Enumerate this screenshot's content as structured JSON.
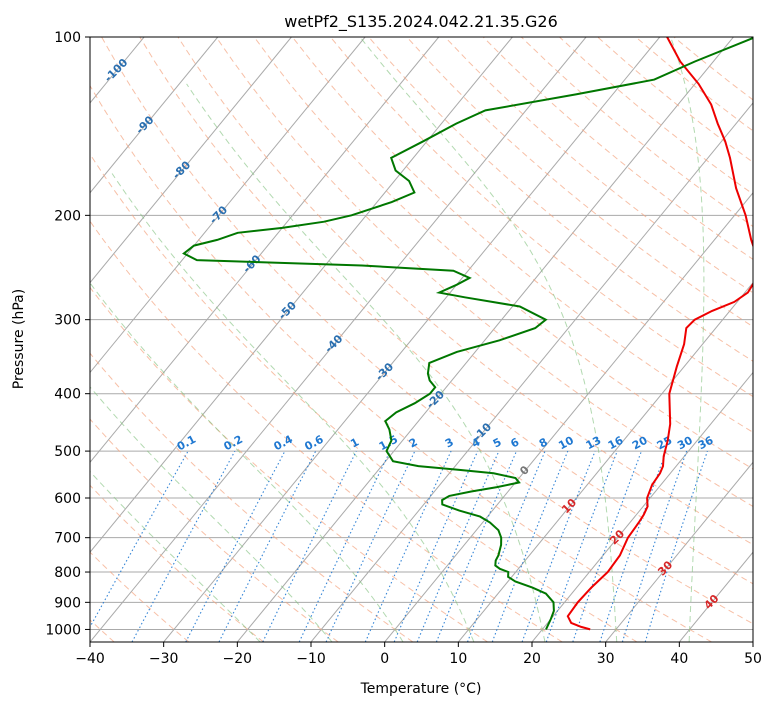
{
  "chart_data": {
    "type": "line",
    "title": "wetPf2_S135.2024.042.21.35.G26",
    "xlabel": "Temperature (°C)",
    "ylabel": "Pressure (hPa)",
    "xlim": [
      -40,
      50
    ],
    "ylim": [
      1050,
      100
    ],
    "y_scale": "log",
    "grid": true,
    "x_ticks": [
      -40,
      -30,
      -20,
      -10,
      0,
      10,
      20,
      30,
      40,
      50
    ],
    "y_ticks": [
      1000,
      900,
      800,
      700,
      600,
      500,
      400,
      300,
      200,
      100
    ],
    "skew": "skew-T log-P",
    "series": [
      {
        "color": "#ee0000",
        "points": [
          [
            1000,
            26.5
          ],
          [
            990,
            25.0
          ],
          [
            975,
            23.2
          ],
          [
            950,
            22.0
          ],
          [
            900,
            21.8
          ],
          [
            850,
            22.0
          ],
          [
            800,
            22.5
          ],
          [
            750,
            22.3
          ],
          [
            700,
            21.4
          ],
          [
            660,
            21.2
          ],
          [
            640,
            21.0
          ],
          [
            620,
            20.6
          ],
          [
            600,
            19.6
          ],
          [
            570,
            18.8
          ],
          [
            545,
            18.6
          ],
          [
            530,
            18.2
          ],
          [
            510,
            17.2
          ],
          [
            480,
            16.0
          ],
          [
            450,
            14.5
          ],
          [
            400,
            11.0
          ],
          [
            360,
            9.0
          ],
          [
            330,
            7.5
          ],
          [
            310,
            6.0
          ],
          [
            300,
            6.2
          ],
          [
            290,
            7.6
          ],
          [
            280,
            9.6
          ],
          [
            270,
            10.4
          ],
          [
            255,
            10.0
          ],
          [
            240,
            8.5
          ],
          [
            220,
            5.0
          ],
          [
            200,
            1.5
          ],
          [
            180,
            -2.8
          ],
          [
            160,
            -7.0
          ],
          [
            150,
            -9.5
          ],
          [
            140,
            -12.5
          ],
          [
            130,
            -15.5
          ],
          [
            120,
            -19.5
          ],
          [
            110,
            -24.5
          ],
          [
            100,
            -29.0
          ]
        ]
      },
      {
        "color": "#007700",
        "points": [
          [
            1000,
            20.5
          ],
          [
            960,
            20.0
          ],
          [
            930,
            19.5
          ],
          [
            900,
            18.5
          ],
          [
            870,
            16.5
          ],
          [
            850,
            14.0
          ],
          [
            830,
            11.0
          ],
          [
            815,
            9.5
          ],
          [
            800,
            9.0
          ],
          [
            790,
            7.5
          ],
          [
            780,
            6.5
          ],
          [
            765,
            6.0
          ],
          [
            750,
            5.8
          ],
          [
            720,
            5.0
          ],
          [
            700,
            4.2
          ],
          [
            680,
            3.0
          ],
          [
            660,
            1.0
          ],
          [
            645,
            -1.0
          ],
          [
            630,
            -4.5
          ],
          [
            615,
            -7.5
          ],
          [
            605,
            -8.0
          ],
          [
            595,
            -7.5
          ],
          [
            585,
            -5.0
          ],
          [
            575,
            -2.0
          ],
          [
            565,
            0.5
          ],
          [
            555,
            -0.5
          ],
          [
            545,
            -4.0
          ],
          [
            538,
            -9.0
          ],
          [
            530,
            -15.0
          ],
          [
            520,
            -19.0
          ],
          [
            500,
            -21.0
          ],
          [
            480,
            -21.5
          ],
          [
            460,
            -23.0
          ],
          [
            445,
            -24.5
          ],
          [
            430,
            -24.0
          ],
          [
            415,
            -22.5
          ],
          [
            400,
            -21.5
          ],
          [
            390,
            -21.5
          ],
          [
            380,
            -23.0
          ],
          [
            370,
            -24.0
          ],
          [
            355,
            -25.0
          ],
          [
            340,
            -22.5
          ],
          [
            325,
            -18.0
          ],
          [
            310,
            -14.5
          ],
          [
            300,
            -14.0
          ],
          [
            285,
            -19.0
          ],
          [
            275,
            -27.5
          ],
          [
            270,
            -31.5
          ],
          [
            262,
            -30.0
          ],
          [
            255,
            -29.0
          ],
          [
            248,
            -32.0
          ],
          [
            243,
            -45.0
          ],
          [
            238,
            -68.0
          ],
          [
            232,
            -70.5
          ],
          [
            225,
            -70.0
          ],
          [
            220,
            -67.5
          ],
          [
            214,
            -65.5
          ],
          [
            210,
            -60.0
          ],
          [
            205,
            -55.0
          ],
          [
            200,
            -52.0
          ],
          [
            190,
            -48.0
          ],
          [
            183,
            -46.0
          ],
          [
            175,
            -48.0
          ],
          [
            168,
            -51.0
          ],
          [
            160,
            -53.0
          ],
          [
            150,
            -50.5
          ],
          [
            140,
            -48.0
          ],
          [
            133,
            -45.5
          ],
          [
            125,
            -35.0
          ],
          [
            118,
            -26.0
          ],
          [
            110,
            -22.5
          ],
          [
            100,
            -17.0
          ]
        ]
      }
    ],
    "dry_adiabat_labels": [
      "-100",
      "-90",
      "-80",
      "-70",
      "-60",
      "-50",
      "-40",
      "-30",
      "-20",
      "-10",
      "0",
      "10",
      "20",
      "30",
      "40"
    ],
    "mixing_ratio_labels": [
      "0.1",
      "0.2",
      "0.4",
      "0.6",
      "1",
      "1.5",
      "2",
      "3",
      "4",
      "5",
      "6",
      "8",
      "10",
      "13",
      "16",
      "20",
      "25",
      "30",
      "36"
    ],
    "colors": {
      "temperature": "#ee0000",
      "dewpoint": "#007700",
      "isotherm": "#aaaaaa",
      "dry_adiabat": "#f4a582",
      "moist_adiabat": "#7fbf7b",
      "mixing_ratio": "#1f78d1",
      "dry_adiabat_label": "#2a6fb0",
      "warm_label": "#d62728",
      "zero_label": "#777777"
    }
  }
}
